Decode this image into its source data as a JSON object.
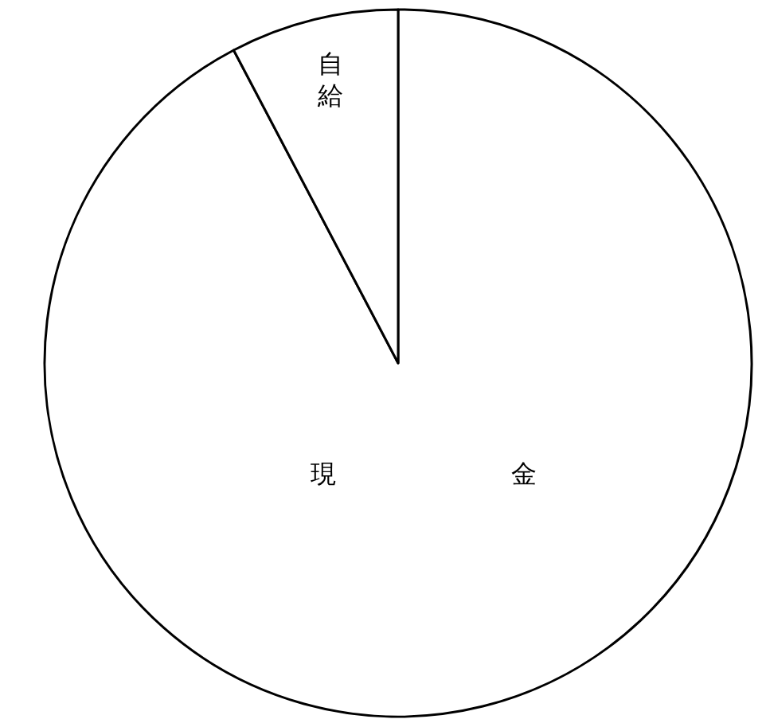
{
  "chart_data": {
    "type": "pie",
    "categories": [
      "現金",
      "自給"
    ],
    "values": [
      92.3,
      7.7
    ],
    "colors": [
      "#ffffff",
      "#ffffff"
    ]
  }
}
